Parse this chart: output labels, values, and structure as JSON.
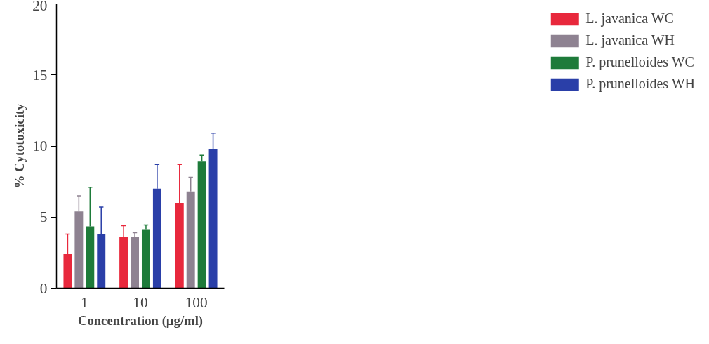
{
  "chart_data": {
    "type": "bar",
    "xlabel": "Concentration (µg/ml)",
    "ylabel": "% Cytotoxicity",
    "categories": [
      "1",
      "10",
      "100"
    ],
    "ylim": [
      0,
      20
    ],
    "yticks": [
      0,
      5,
      10,
      15,
      20
    ],
    "grid": false,
    "legend": "right",
    "series": [
      {
        "name": "L. javanica WC",
        "color": "#e8283c",
        "values": [
          2.4,
          3.6,
          6.0
        ],
        "errors": [
          [
            2.4,
            3.8
          ],
          [
            3.6,
            4.4
          ],
          [
            6.0,
            8.7
          ]
        ]
      },
      {
        "name": "L. javanica WH",
        "color": "#8e8291",
        "values": [
          5.4,
          3.6,
          6.8
        ],
        "errors": [
          [
            5.4,
            6.5
          ],
          [
            3.6,
            3.9
          ],
          [
            6.8,
            7.8
          ]
        ]
      },
      {
        "name": "P. prunelloides WC",
        "color": "#1e7b3a",
        "values": [
          4.35,
          4.15,
          8.9
        ],
        "errors": [
          [
            4.35,
            7.1
          ],
          [
            4.15,
            4.45
          ],
          [
            8.9,
            9.35
          ]
        ]
      },
      {
        "name": "P. prunelloides WH",
        "color": "#2a3fa8",
        "values": [
          3.8,
          7.0,
          9.8
        ],
        "errors": [
          [
            3.8,
            5.7
          ],
          [
            7.0,
            8.7
          ],
          [
            9.8,
            10.9
          ]
        ]
      }
    ]
  }
}
